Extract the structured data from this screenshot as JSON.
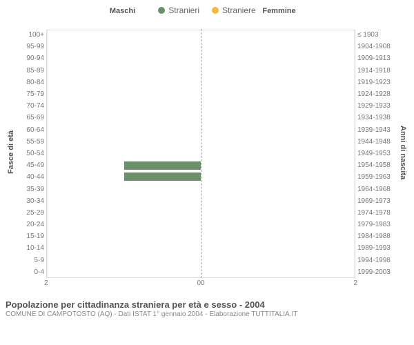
{
  "legend": {
    "male": {
      "label": "Stranieri",
      "color": "#6b8e6b"
    },
    "female": {
      "label": "Straniere",
      "color": "#f5b83d"
    }
  },
  "column_titles": {
    "left": "Maschi",
    "right": "Femmine"
  },
  "y_axis_titles": {
    "left": "Fasce di età",
    "right": "Anni di nascita"
  },
  "age_labels": [
    "100+",
    "95-99",
    "90-94",
    "85-89",
    "80-84",
    "75-79",
    "70-74",
    "65-69",
    "60-64",
    "55-59",
    "50-54",
    "45-49",
    "40-44",
    "35-39",
    "30-34",
    "25-29",
    "20-24",
    "15-19",
    "10-14",
    "5-9",
    "0-4"
  ],
  "birth_labels": [
    "≤ 1903",
    "1904-1908",
    "1909-1913",
    "1914-1918",
    "1919-1923",
    "1924-1928",
    "1929-1933",
    "1934-1938",
    "1939-1943",
    "1944-1948",
    "1949-1953",
    "1954-1958",
    "1959-1963",
    "1964-1968",
    "1969-1973",
    "1974-1978",
    "1979-1983",
    "1984-1988",
    "1989-1993",
    "1994-1998",
    "1999-2003"
  ],
  "x_ticks": {
    "left": [
      "2",
      "0"
    ],
    "right": [
      "0",
      "2"
    ]
  },
  "x_max": 2,
  "data": {
    "male": [
      0,
      0,
      0,
      0,
      0,
      0,
      0,
      0,
      0,
      0,
      0,
      1,
      1,
      0,
      0,
      0,
      0,
      0,
      0,
      0,
      0
    ],
    "female": [
      0,
      0,
      0,
      0,
      0,
      0,
      0,
      0,
      0,
      0,
      0,
      0,
      0,
      0,
      0,
      0,
      0,
      0,
      0,
      0,
      0
    ]
  },
  "colors": {
    "male_bar": "#6b8e6b",
    "female_bar": "#f5b83d",
    "grid": "#e8e8e8",
    "center_dash": "#aaa64a",
    "background": "#ffffff"
  },
  "footer": {
    "title": "Popolazione per cittadinanza straniera per età e sesso - 2004",
    "subtitle": "COMUNE DI CAMPOTOSTO (AQ) - Dati ISTAT 1° gennaio 2004 - Elaborazione TUTTITALIA.IT"
  }
}
